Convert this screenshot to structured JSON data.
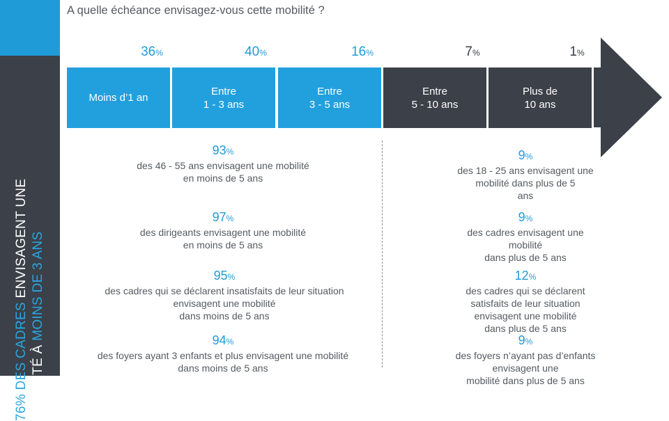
{
  "sidebar": {
    "title_line1_accent": "76% des cadres",
    "title_line1_rest": " envisagent une",
    "title_line2_rest": "mobilité à ",
    "title_line2_accent": "moins de 3 ans"
  },
  "question": "A quelle échéance envisagez-vous cette mobilité  ?",
  "chart_data": {
    "type": "bar",
    "categories": [
      "Moins d'1 an",
      "Entre 1 - 3 ans",
      "Entre 3 - 5 ans",
      "Entre 5 - 10 ans",
      "Plus de 10 ans"
    ],
    "values": [
      36,
      40,
      16,
      7,
      1
    ],
    "unit": "%"
  },
  "segments": [
    {
      "label": "Moins d’1 an",
      "value": "36",
      "unit": "%"
    },
    {
      "label": "Entre\n1 - 3 ans",
      "value": "40",
      "unit": "%"
    },
    {
      "label": "Entre\n3 - 5 ans",
      "value": "16",
      "unit": "%"
    },
    {
      "label": "Entre\n5 - 10 ans",
      "value": "7",
      "unit": "%"
    },
    {
      "label": "Plus de\n10 ans",
      "value": "1",
      "unit": "%"
    }
  ],
  "colors": {
    "blue": "#1f9bd8",
    "dark": "#3c4048"
  },
  "left_stats": [
    {
      "value": "93",
      "unit": "%",
      "text": "des 46 - 55 ans envisagent une mobilité\nen moins de 5 ans"
    },
    {
      "value": "97",
      "unit": "%",
      "text": "des dirigeants envisagent une mobilité\nen moins de 5 ans"
    },
    {
      "value": "95",
      "unit": "%",
      "text": "des cadres qui se déclarent insatisfaits de leur situation\nenvisagent une mobilité\ndans moins de 5 ans"
    },
    {
      "value": "94",
      "unit": "%",
      "text": "des foyers ayant 3 enfants et plus envisagent une mobilité\ndans moins de 5 ans"
    }
  ],
  "right_stats": [
    {
      "value": "9",
      "unit": "%",
      "text": "des 18 - 25 ans envisagent une mobilité dans plus de 5\nans"
    },
    {
      "value": "9",
      "unit": "%",
      "text": "des cadres envisagent une mobilité\ndans plus de 5 ans"
    },
    {
      "value": "12",
      "unit": "%",
      "text": "des cadres qui se déclarent satisfaits de leur situation\nenvisagent une mobilité\ndans plus de 5 ans"
    },
    {
      "value": "9",
      "unit": "%",
      "text": "des foyers n’ayant pas d’enfants envisagent une\nmobilité dans plus de 5 ans"
    }
  ]
}
